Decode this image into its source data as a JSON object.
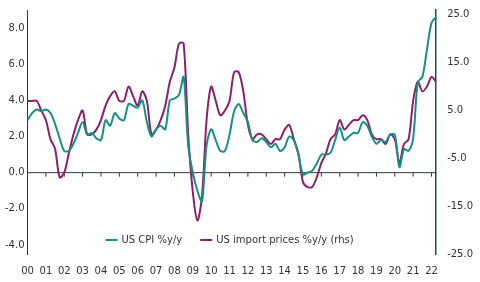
{
  "chart_data": {
    "type": "line",
    "categories": [
      "00",
      null,
      null,
      null,
      "01",
      null,
      null,
      null,
      "02",
      null,
      null,
      null,
      "03",
      null,
      null,
      null,
      "04",
      null,
      null,
      null,
      "05",
      null,
      null,
      null,
      "06",
      null,
      null,
      null,
      "07",
      null,
      null,
      null,
      "08",
      null,
      null,
      null,
      "09",
      null,
      null,
      null,
      "10",
      null,
      null,
      null,
      "11",
      null,
      null,
      null,
      "12",
      null,
      null,
      null,
      "13",
      null,
      null,
      null,
      "14",
      null,
      null,
      null,
      "15",
      null,
      null,
      null,
      "16",
      null,
      null,
      null,
      "17",
      null,
      null,
      null,
      "18",
      null,
      null,
      null,
      "19",
      null,
      null,
      null,
      "20",
      null,
      null,
      null,
      "21",
      null,
      null,
      null,
      "22",
      null
    ],
    "series": [
      {
        "name": "US CPI %y/y",
        "color": "#179083",
        "axis": "y",
        "values": [
          2.9,
          3.3,
          3.5,
          3.4,
          3.5,
          3.3,
          2.7,
          1.9,
          1.2,
          1.2,
          1.6,
          2.2,
          2.8,
          2.1,
          2.2,
          1.9,
          1.8,
          2.9,
          2.6,
          3.3,
          3.0,
          2.9,
          3.8,
          3.7,
          3.6,
          4.0,
          2.8,
          2.0,
          2.4,
          2.6,
          2.4,
          4.0,
          4.1,
          4.3,
          5.3,
          1.5,
          0.0,
          -1.0,
          -1.6,
          1.5,
          2.4,
          1.8,
          1.2,
          1.2,
          2.1,
          3.4,
          3.8,
          3.3,
          2.8,
          1.8,
          1.7,
          1.9,
          1.7,
          1.4,
          1.6,
          1.2,
          1.4,
          2.0,
          1.8,
          1.0,
          -0.1,
          0.0,
          0.1,
          0.5,
          1.0,
          1.0,
          1.1,
          1.8,
          2.5,
          1.8,
          2.0,
          2.2,
          2.2,
          2.8,
          2.6,
          2.0,
          1.6,
          1.8,
          1.7,
          2.1,
          2.1,
          0.3,
          1.3,
          1.2,
          1.9,
          5.0,
          5.3,
          6.8,
          8.3,
          8.6
        ]
      },
      {
        "name": "US import prices %y/y (rhs)",
        "color": "#8e1f6e",
        "axis": "y2",
        "values": [
          7,
          7,
          7,
          5,
          3,
          -1,
          -3,
          -9,
          -8,
          -4,
          0,
          3,
          5,
          0,
          0,
          1,
          3,
          6,
          8,
          9,
          7,
          7,
          10,
          8,
          6,
          9,
          7,
          0,
          1,
          3,
          6,
          11,
          14,
          19,
          19,
          0,
          -12,
          -18,
          -13,
          3,
          10,
          7,
          4,
          5,
          7,
          13,
          13,
          9,
          2,
          -1,
          0,
          0,
          -1,
          -2,
          -1,
          -1,
          1,
          2,
          -1,
          -4,
          -10,
          -11,
          -11,
          -9,
          -6,
          -4,
          -1,
          0,
          3,
          1,
          2,
          3,
          3,
          4,
          3,
          0,
          -1,
          -1,
          -2,
          0,
          -1,
          -6,
          -2,
          -1,
          7,
          11,
          9,
          10,
          12,
          11
        ]
      }
    ],
    "ylim": [
      -4.5,
      9
    ],
    "yticks": [
      {
        "value": -4,
        "label": "-4.0"
      },
      {
        "value": -2,
        "label": "-2.0"
      },
      {
        "value": 0,
        "label": "0.0"
      },
      {
        "value": 2,
        "label": "2.0"
      },
      {
        "value": 4,
        "label": "4.0"
      },
      {
        "value": 6,
        "label": "6.0"
      },
      {
        "value": 8,
        "label": "8.0"
      }
    ],
    "y2lim": [
      -25,
      26
    ],
    "y2ticks": [
      {
        "value": -25,
        "label": "-25.0"
      },
      {
        "value": -15,
        "label": "-15.0"
      },
      {
        "value": -5,
        "label": "-5.0"
      },
      {
        "value": 5,
        "label": "5.0"
      },
      {
        "value": 15,
        "label": "15.0"
      },
      {
        "value": 25,
        "label": "25.0"
      }
    ],
    "grid": false,
    "legend": "bottom"
  }
}
